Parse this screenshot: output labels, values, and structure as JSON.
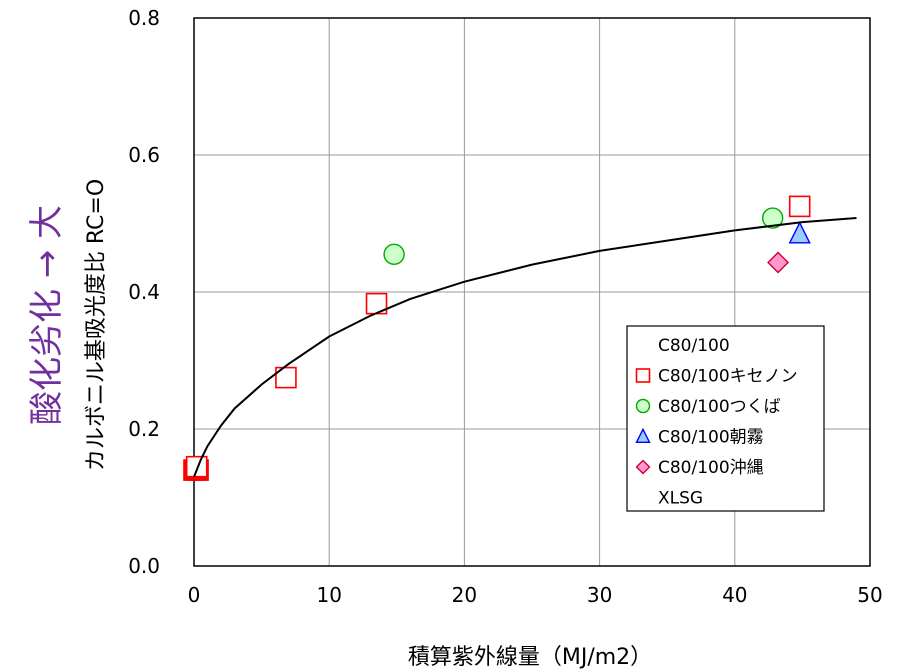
{
  "side_label": {
    "text": "酸化劣化 → 大",
    "color": "#7030A0"
  },
  "chart_data": {
    "type": "scatter",
    "xlabel": "積算紫外線量（MJ/m2）",
    "ylabel": "カルボニル基吸光度比 RC=O",
    "xlim": [
      0,
      50
    ],
    "ylim": [
      0,
      0.8
    ],
    "x_ticks": [
      "0",
      "10",
      "20",
      "30",
      "40",
      "50"
    ],
    "y_ticks": [
      "0.0",
      "0.2",
      "0.4",
      "0.6",
      "0.8"
    ],
    "grid": true,
    "legend_position": "right",
    "series": [
      {
        "name": "C80/100",
        "marker": "filled-square",
        "color": "#ff0000",
        "points": [
          [
            0,
            0.14
          ],
          [
            0.3,
            0.14
          ]
        ]
      },
      {
        "name": "C80/100キセノン",
        "marker": "square",
        "color": "#ff0000",
        "points": [
          [
            0.2,
            0.145
          ],
          [
            6.8,
            0.275
          ],
          [
            13.5,
            0.383
          ],
          [
            44.8,
            0.525
          ]
        ]
      },
      {
        "name": "C80/100つくば",
        "marker": "circle",
        "color": "#00aa00",
        "fill": "#ccffcc",
        "points": [
          [
            14.8,
            0.455
          ],
          [
            42.8,
            0.508
          ]
        ]
      },
      {
        "name": "C80/100朝霧",
        "marker": "triangle",
        "color": "#0000ff",
        "fill": "#99ccff",
        "points": [
          [
            44.8,
            0.485
          ]
        ]
      },
      {
        "name": "C80/100沖縄",
        "marker": "diamond",
        "color": "#cc0033",
        "fill": "#ff99cc",
        "points": [
          [
            43.2,
            0.443
          ]
        ]
      },
      {
        "name": "XLSG",
        "marker": "line",
        "color": "#000000",
        "points": [
          [
            0,
            0.13
          ],
          [
            0.5,
            0.155
          ],
          [
            1,
            0.175
          ],
          [
            2,
            0.205
          ],
          [
            3,
            0.23
          ],
          [
            5,
            0.265
          ],
          [
            7,
            0.295
          ],
          [
            10,
            0.335
          ],
          [
            13,
            0.365
          ],
          [
            16,
            0.39
          ],
          [
            20,
            0.415
          ],
          [
            25,
            0.44
          ],
          [
            30,
            0.46
          ],
          [
            35,
            0.475
          ],
          [
            40,
            0.49
          ],
          [
            45,
            0.502
          ],
          [
            49,
            0.508
          ]
        ]
      }
    ]
  }
}
